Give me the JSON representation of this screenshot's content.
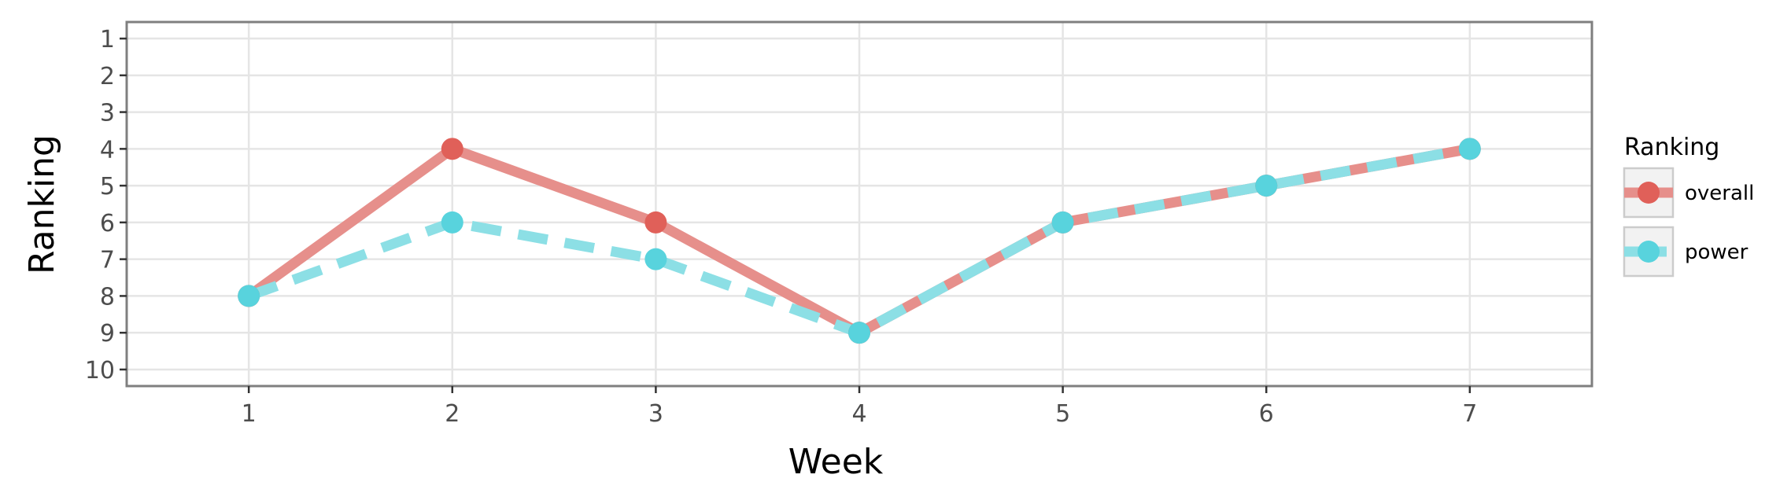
{
  "chart_data": {
    "type": "line",
    "title": "",
    "xlabel": "Week",
    "ylabel": "Ranking",
    "x": [
      1,
      2,
      3,
      4,
      5,
      6,
      7
    ],
    "xlim": [
      0.4,
      7.6
    ],
    "ylim": [
      10.45,
      0.55
    ],
    "y_reversed": true,
    "x_ticks": [
      "1",
      "2",
      "3",
      "4",
      "5",
      "6",
      "7"
    ],
    "y_ticks": [
      "1",
      "2",
      "3",
      "4",
      "5",
      "6",
      "7",
      "8",
      "9",
      "10"
    ],
    "grid": true,
    "legend": {
      "title": "Ranking",
      "position": "right"
    },
    "series": [
      {
        "name": "overall",
        "values": [
          8,
          4,
          6,
          9,
          6,
          5,
          4
        ],
        "color": "#e06059",
        "line_color": "#e68f8b",
        "dash": "solid"
      },
      {
        "name": "power",
        "values": [
          8,
          6,
          7,
          9,
          6,
          5,
          4
        ],
        "color": "#58d3dd",
        "line_color": "#8cdfe5",
        "dash": "dashed"
      }
    ]
  }
}
